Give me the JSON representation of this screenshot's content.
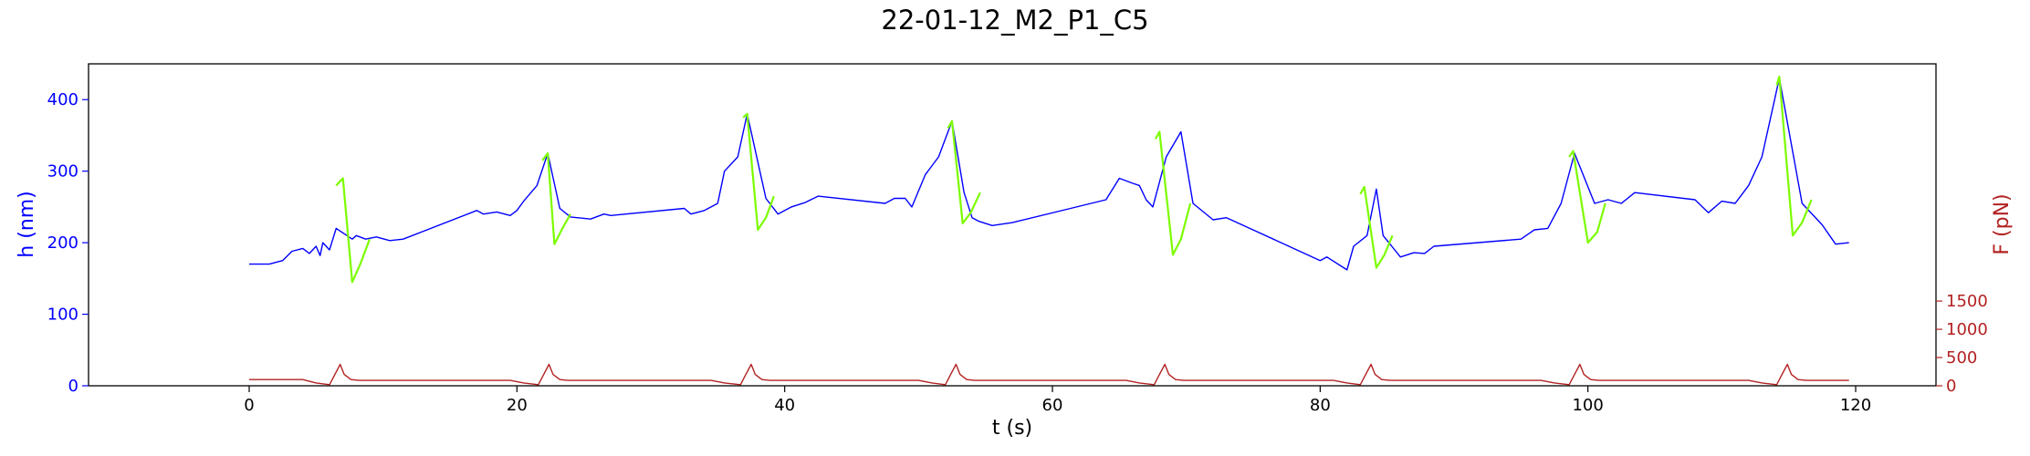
{
  "chart_data": {
    "type": "line",
    "title": "22-01-12_M2_P1_C5",
    "xlabel": "t (s)",
    "ylabel_left": "h (nm)",
    "ylabel_right": "F (pN)",
    "xlim": [
      -12,
      126
    ],
    "ylim_left": [
      0,
      450
    ],
    "ylim_right": [
      0,
      5700
    ],
    "x_ticks": [
      0,
      20,
      40,
      60,
      80,
      100,
      120
    ],
    "y_left_ticks": [
      0,
      100,
      200,
      300,
      400
    ],
    "y_right_ticks": [
      0,
      500,
      1000,
      1500
    ],
    "grid": false,
    "colors": {
      "h_trace": "#0000ff",
      "h_pulled": "#7cfc00",
      "force": "#b22222",
      "left_axis": "#0000ff",
      "right_axis": "#b22222"
    },
    "series": [
      {
        "axis": "left",
        "color": "#0000ff",
        "x": [
          0,
          1.5,
          2.5,
          3.2,
          4.0,
          4.5,
          5.0,
          5.3,
          5.5,
          6.0,
          6.5,
          7.7,
          8.0,
          8.7,
          9.5,
          10.5,
          11.5,
          17,
          17.5,
          18.5,
          19.5,
          20.0,
          20.5,
          21.5,
          22.3,
          23.2,
          24,
          25.5,
          26.5,
          27,
          32.5,
          33,
          34,
          35,
          35.5,
          36.5,
          37.2,
          38.6,
          39.5,
          40.5,
          41.5,
          42.5,
          47.5,
          48.2,
          49,
          49.5,
          50.5,
          51.5,
          52.5,
          53.4,
          54.0,
          54.5,
          55.5,
          57,
          64,
          65,
          66,
          66.5,
          67.0,
          67.5,
          68.5,
          69.6,
          70.5,
          72,
          73,
          80,
          80.5,
          82,
          82.5,
          83.5,
          84.2,
          84.7,
          86,
          87,
          87.8,
          88.5,
          95,
          96,
          97,
          98,
          99,
          100.5,
          101.5,
          102.5,
          103.5,
          108,
          109,
          110,
          111,
          112,
          113,
          114.3,
          116,
          117.5,
          118.5,
          119.5
        ],
        "y": [
          170,
          170,
          175,
          188,
          192,
          185,
          195,
          182,
          200,
          190,
          220,
          205,
          210,
          205,
          208,
          203,
          205,
          245,
          240,
          243,
          238,
          245,
          258,
          280,
          325,
          248,
          236,
          233,
          240,
          238,
          248,
          240,
          245,
          255,
          300,
          320,
          380,
          262,
          240,
          250,
          256,
          265,
          255,
          262,
          262,
          250,
          295,
          320,
          370,
          270,
          235,
          230,
          224,
          228,
          260,
          290,
          283,
          280,
          260,
          250,
          320,
          355,
          255,
          232,
          235,
          175,
          180,
          162,
          195,
          210,
          275,
          210,
          180,
          186,
          185,
          195,
          205,
          218,
          220,
          255,
          325,
          255,
          260,
          255,
          270,
          260,
          242,
          258,
          255,
          280,
          320,
          430,
          255,
          225,
          198,
          200
        ]
      },
      {
        "axis": "left",
        "color": "#7cfc00",
        "segments": [
          {
            "x": [
              6.5,
              7.0,
              7.7,
              8.3,
              9.0
            ],
            "y": [
              280,
              290,
              145,
              170,
              205
            ]
          },
          {
            "x": [
              21.9,
              22.3,
              22.8,
              23.4,
              24.0
            ],
            "y": [
              315,
              325,
              198,
              220,
              240
            ]
          },
          {
            "x": [
              36.9,
              37.2,
              38.0,
              38.6,
              39.2
            ],
            "y": [
              375,
              380,
              218,
              235,
              265
            ]
          },
          {
            "x": [
              52.2,
              52.5,
              53.3,
              53.9,
              54.6
            ],
            "y": [
              360,
              370,
              227,
              242,
              270
            ]
          },
          {
            "x": [
              67.7,
              68.0,
              69.0,
              69.6,
              70.3
            ],
            "y": [
              345,
              355,
              183,
              205,
              255
            ]
          },
          {
            "x": [
              83.0,
              83.3,
              84.2,
              84.8,
              85.4
            ],
            "y": [
              268,
              278,
              165,
              183,
              210
            ]
          },
          {
            "x": [
              98.6,
              98.9,
              100.0,
              100.7,
              101.3
            ],
            "y": [
              320,
              328,
              200,
              215,
              255
            ]
          },
          {
            "x": [
              114.1,
              114.3,
              115.3,
              116.0,
              116.7
            ],
            "y": [
              420,
              432,
              210,
              228,
              260
            ]
          }
        ]
      },
      {
        "axis": "right",
        "color": "#b22222",
        "x": [
          0,
          4,
          5,
          6,
          6.4,
          6.8,
          7.1,
          7.6,
          8.2,
          12,
          19.5,
          20.5,
          21.6,
          22.0,
          22.4,
          22.7,
          23.2,
          23.8,
          34.5,
          35.5,
          36.7,
          37.1,
          37.5,
          37.8,
          38.3,
          38.9,
          50,
          51,
          52,
          52.4,
          52.8,
          53.1,
          53.6,
          54.2,
          65.5,
          66.5,
          67.6,
          68.0,
          68.4,
          68.7,
          69.2,
          69.8,
          81,
          82,
          83.0,
          83.4,
          83.8,
          84.1,
          84.6,
          85.2,
          96.5,
          97.5,
          98.6,
          99.0,
          99.4,
          99.7,
          100.2,
          100.8,
          112,
          113,
          114.1,
          114.5,
          114.9,
          115.2,
          115.7,
          116.3,
          119.5
        ],
        "y": [
          110,
          110,
          50,
          20,
          200,
          380,
          200,
          110,
          95,
          95,
          95,
          50,
          20,
          200,
          380,
          200,
          110,
          95,
          95,
          50,
          20,
          200,
          380,
          200,
          110,
          95,
          95,
          50,
          20,
          200,
          380,
          200,
          110,
          95,
          95,
          50,
          20,
          200,
          380,
          200,
          110,
          95,
          95,
          50,
          20,
          200,
          380,
          200,
          110,
          95,
          95,
          50,
          20,
          200,
          380,
          200,
          110,
          95,
          95,
          50,
          20,
          200,
          380,
          200,
          110,
          95,
          95
        ]
      }
    ]
  }
}
